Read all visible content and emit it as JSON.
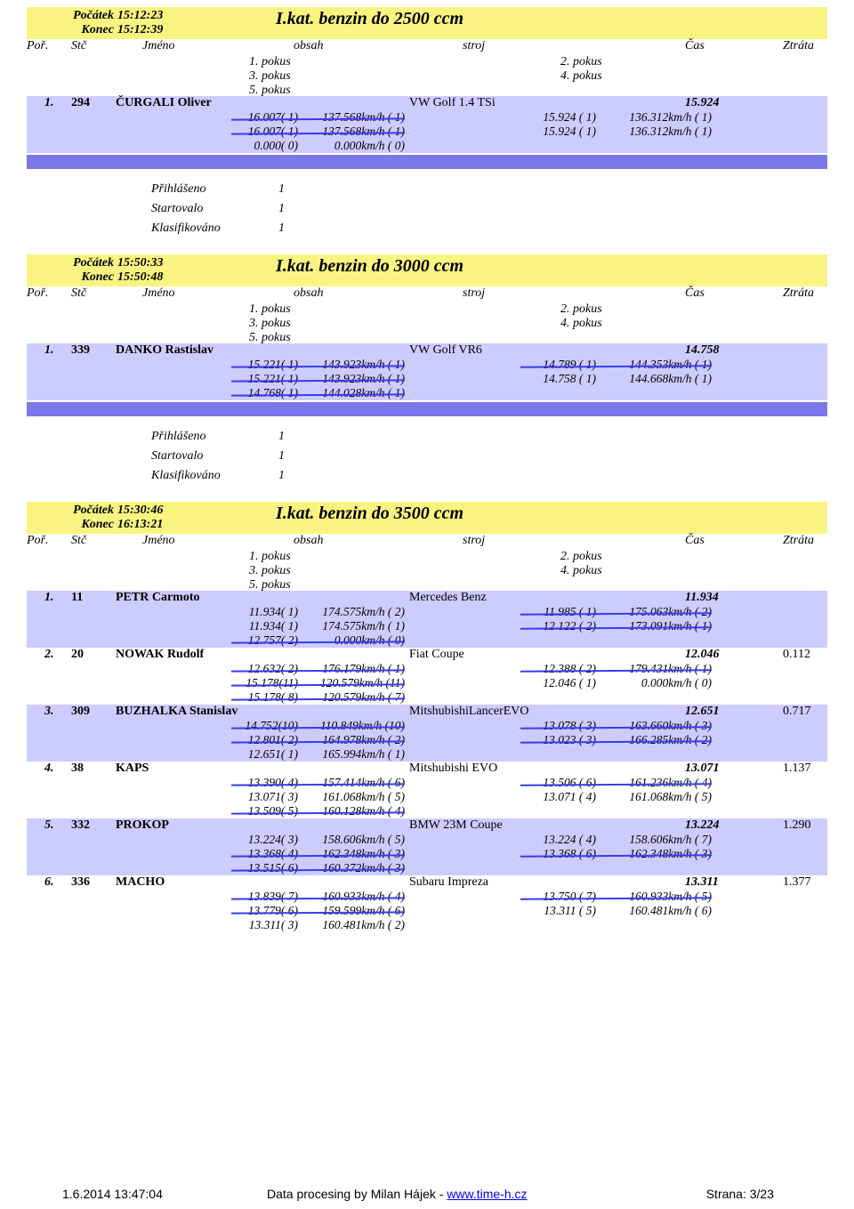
{
  "columns": {
    "por": "Poř.",
    "stc": "Stč",
    "jmeno": "Jméno",
    "obsah": "obsah",
    "stroj": "stroj",
    "cas": "Čas",
    "ztrata": "Ztráta",
    "p1": "1. pokus",
    "p2": "2. pokus",
    "p3": "3. pokus",
    "p4": "4. pokus",
    "p5": "5. pokus"
  },
  "stats_labels": {
    "prihlaseno": "Přihlášeno",
    "startovalo": "Startovalo",
    "klasifikovano": "Klasifikováno"
  },
  "colors": {
    "header_bg": "#f9f481",
    "row_bg": "#ccccff",
    "divider_bg": "#7a78e8",
    "strike": "#3a3af0"
  },
  "sections": [
    {
      "start_label": "Počátek",
      "start_time": "15:12:23",
      "end_label": "Konec",
      "end_time": "15:12:39",
      "title": "I.kat. benzin do 2500 ccm",
      "stats": {
        "prihlaseno": "1",
        "startovalo": "1",
        "klasifikovano": "1"
      },
      "rows": [
        {
          "por": "1.",
          "stc": "294",
          "name": "ČURGALI Oliver",
          "stroj": "VW Golf 1.4 TSi",
          "cas": "15.924",
          "ztrata": "",
          "attempts": [
            {
              "t1": "16.007( 1)",
              "s1": "137.568km/h  ( 1)",
              "t2": "15.924 ( 1)",
              "s2": "136.312km/h  ( 1)",
              "st1": true,
              "st2": false
            },
            {
              "t1": "16.007( 1)",
              "s1": "137.568km/h  ( 1)",
              "t2": "15.924 ( 1)",
              "s2": "136.312km/h  ( 1)",
              "st1": true,
              "st2": false
            },
            {
              "t1": "0.000( 0)",
              "s1": "0.000km/h  ( 0)",
              "t2": "",
              "s2": "",
              "st1": false,
              "st2": false
            }
          ]
        }
      ]
    },
    {
      "start_label": "Počátek",
      "start_time": "15:50:33",
      "end_label": "Konec",
      "end_time": "15:50:48",
      "title": "I.kat. benzin do 3000 ccm",
      "stats": {
        "prihlaseno": "1",
        "startovalo": "1",
        "klasifikovano": "1"
      },
      "rows": [
        {
          "por": "1.",
          "stc": "339",
          "name": "DANKO Rastislav",
          "stroj": "VW Golf VR6",
          "cas": "14.758",
          "ztrata": "",
          "attempts": [
            {
              "t1": "15.221( 1)",
              "s1": "143.923km/h  ( 1)",
              "t2": "14.789 ( 1)",
              "s2": "144.353km/h  ( 1)",
              "st1": true,
              "st2": true
            },
            {
              "t1": "15.221( 1)",
              "s1": "143.923km/h  ( 1)",
              "t2": "14.758 ( 1)",
              "s2": "144.668km/h  ( 1)",
              "st1": true,
              "st2": false
            },
            {
              "t1": "14.768( 1)",
              "s1": "144.028km/h  ( 1)",
              "t2": "",
              "s2": "",
              "st1": true,
              "st2": false
            }
          ]
        }
      ]
    },
    {
      "start_label": "Počátek",
      "start_time": "15:30:46",
      "end_label": "Konec",
      "end_time": "16:13:21",
      "title": "I.kat. benzin do 3500 ccm",
      "stats": null,
      "rows": [
        {
          "por": "1.",
          "stc": "11",
          "name": "PETR Carmoto",
          "stroj": "Mercedes Benz",
          "cas": "11.934",
          "ztrata": "",
          "attempts": [
            {
              "t1": "11.934( 1)",
              "s1": "174.575km/h  ( 2)",
              "t2": "11.985 ( 1)",
              "s2": "175.063km/h  ( 2)",
              "st1": false,
              "st2": true
            },
            {
              "t1": "11.934( 1)",
              "s1": "174.575km/h  ( 1)",
              "t2": "12.122 ( 2)",
              "s2": "173.091km/h  ( 1)",
              "st1": false,
              "st2": true
            },
            {
              "t1": "12.757( 2)",
              "s1": "0.000km/h  ( 0)",
              "t2": "",
              "s2": "",
              "st1": true,
              "st2": false
            }
          ]
        },
        {
          "por": "2.",
          "stc": "20",
          "name": "NOWAK Rudolf",
          "stroj": "Fiat Coupe",
          "cas": "12.046",
          "ztrata": "0.112",
          "attempts": [
            {
              "t1": "12.632( 2)",
              "s1": "176.179km/h  ( 1)",
              "t2": "12.388 ( 2)",
              "s2": "179.431km/h  ( 1)",
              "st1": true,
              "st2": true
            },
            {
              "t1": "15.178(11)",
              "s1": "120.579km/h  (11)",
              "t2": "12.046 ( 1)",
              "s2": "0.000km/h  ( 0)",
              "st1": true,
              "st2": false
            },
            {
              "t1": "15.178( 8)",
              "s1": "120.579km/h  ( 7)",
              "t2": "",
              "s2": "",
              "st1": true,
              "st2": false
            }
          ]
        },
        {
          "por": "3.",
          "stc": "309",
          "name": "BUZHALKA Stanislav",
          "stroj": "MitshubishiLancerEVO",
          "cas": "12.651",
          "ztrata": "0.717",
          "attempts": [
            {
              "t1": "14.752(10)",
              "s1": "110.849km/h  (10)",
              "t2": "13.078 ( 3)",
              "s2": "163.660km/h  ( 3)",
              "st1": true,
              "st2": true
            },
            {
              "t1": "12.801( 2)",
              "s1": "164.978km/h  ( 2)",
              "t2": "13.023 ( 3)",
              "s2": "166.285km/h  ( 2)",
              "st1": true,
              "st2": true
            },
            {
              "t1": "12.651( 1)",
              "s1": "165.994km/h  ( 1)",
              "t2": "",
              "s2": "",
              "st1": false,
              "st2": false
            }
          ]
        },
        {
          "por": "4.",
          "stc": "38",
          "name": "KAPS",
          "stroj": "Mitshubishi EVO",
          "cas": "13.071",
          "ztrata": "1.137",
          "attempts": [
            {
              "t1": "13.390( 4)",
              "s1": "157.414km/h  ( 6)",
              "t2": "13.506 ( 6)",
              "s2": "161.236km/h  ( 4)",
              "st1": true,
              "st2": true
            },
            {
              "t1": "13.071( 3)",
              "s1": "161.068km/h  ( 5)",
              "t2": "13.071 ( 4)",
              "s2": "161.068km/h  ( 5)",
              "st1": false,
              "st2": false
            },
            {
              "t1": "13.509( 5)",
              "s1": "160.128km/h  ( 4)",
              "t2": "",
              "s2": "",
              "st1": true,
              "st2": false
            }
          ]
        },
        {
          "por": "5.",
          "stc": "332",
          "name": "PROKOP",
          "stroj": "BMW 23M Coupe",
          "cas": "13.224",
          "ztrata": "1.290",
          "attempts": [
            {
              "t1": "13.224( 3)",
              "s1": "158.606km/h  ( 5)",
              "t2": "13.224 ( 4)",
              "s2": "158.606km/h  ( 7)",
              "st1": false,
              "st2": false
            },
            {
              "t1": "13.368( 4)",
              "s1": "162.348km/h  ( 3)",
              "t2": "13.368 ( 6)",
              "s2": "162.348km/h  ( 3)",
              "st1": true,
              "st2": true
            },
            {
              "t1": "13.515( 6)",
              "s1": "160.372km/h  ( 3)",
              "t2": "",
              "s2": "",
              "st1": true,
              "st2": false
            }
          ]
        },
        {
          "por": "6.",
          "stc": "336",
          "name": "MACHO",
          "stroj": "Subaru Impreza",
          "cas": "13.311",
          "ztrata": "1.377",
          "attempts": [
            {
              "t1": "13.839( 7)",
              "s1": "160.933km/h  ( 4)",
              "t2": "13.750 ( 7)",
              "s2": "160.933km/h  ( 5)",
              "st1": true,
              "st2": true
            },
            {
              "t1": "13.779( 6)",
              "s1": "159.599km/h  ( 6)",
              "t2": "13.311 ( 5)",
              "s2": "160.481km/h  ( 6)",
              "st1": true,
              "st2": false
            },
            {
              "t1": "13.311( 3)",
              "s1": "160.481km/h  ( 2)",
              "t2": "",
              "s2": "",
              "st1": false,
              "st2": false
            }
          ]
        }
      ]
    }
  ],
  "footer": {
    "date": "1.6.2014 13:47:04",
    "credit_prefix": "Data procesing by Milan Hájek - ",
    "credit_link": "www.time-h.cz",
    "page": "Strana: 3/23"
  }
}
